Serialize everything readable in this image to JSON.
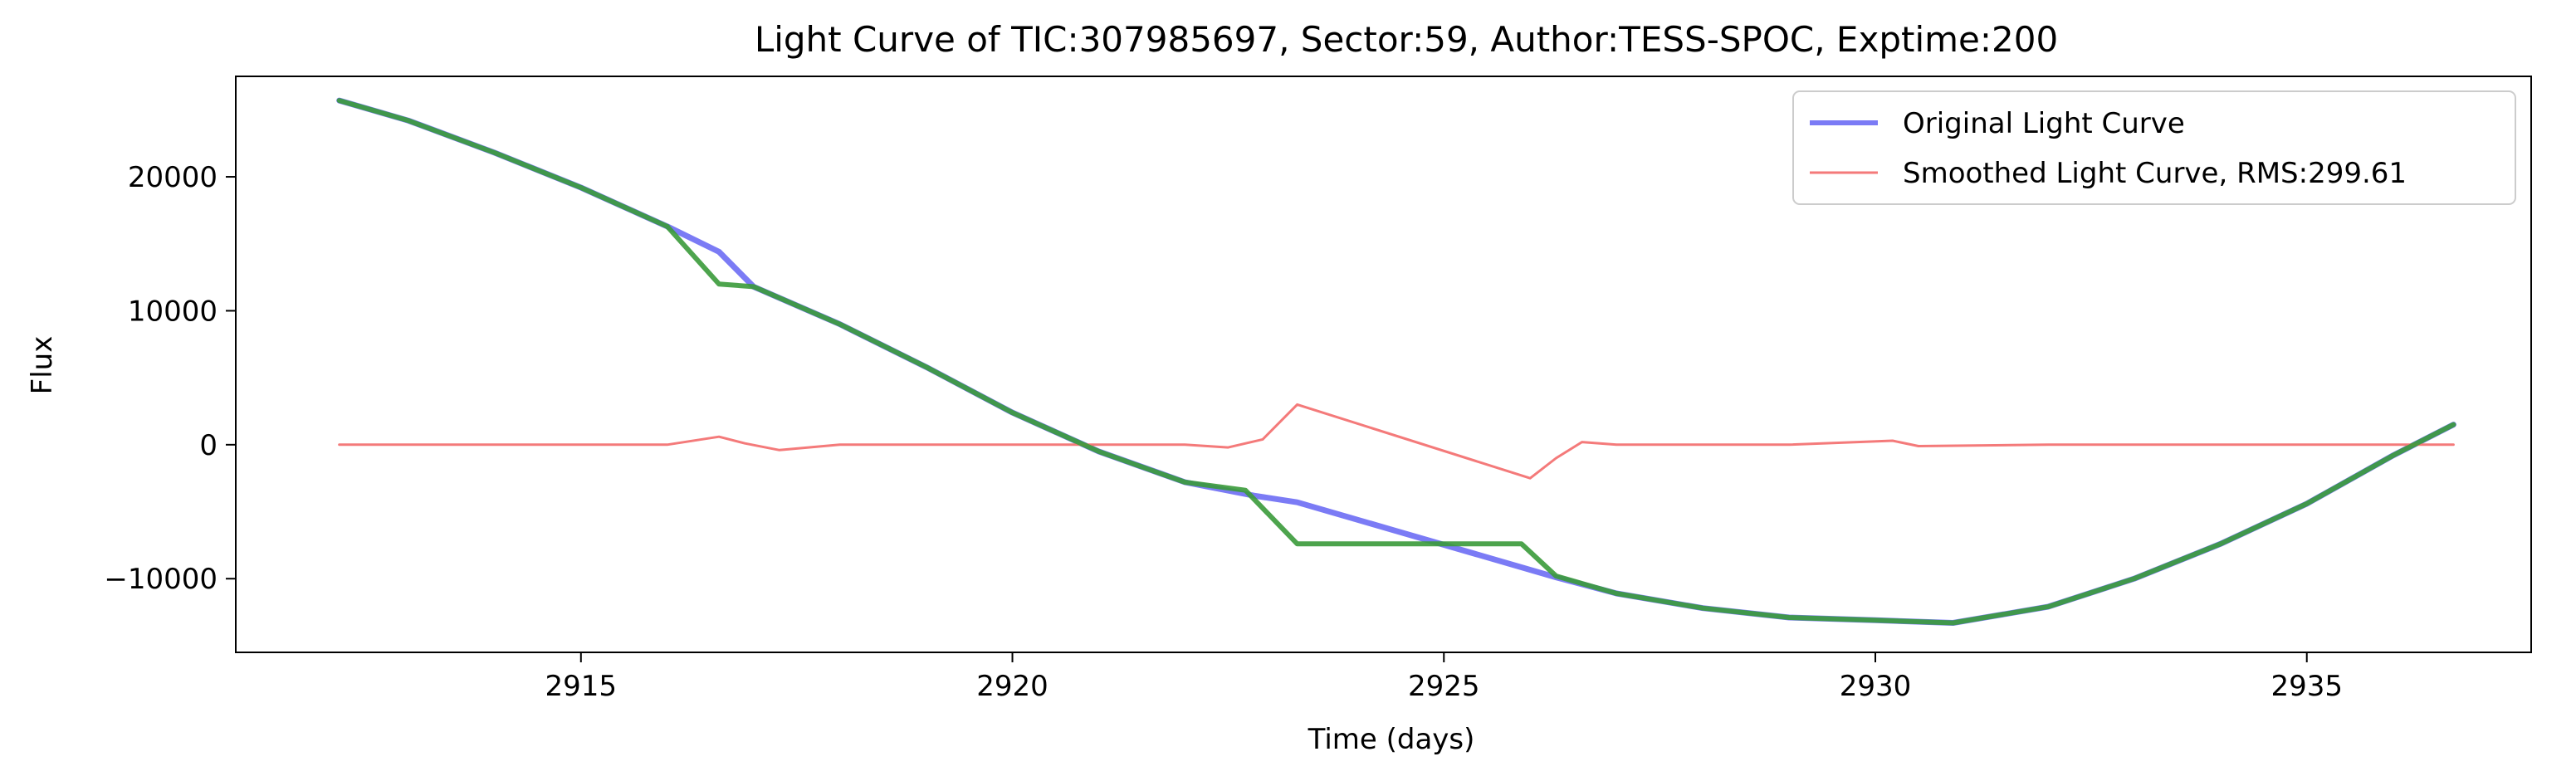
{
  "chart_data": {
    "type": "line",
    "title": "Light Curve of TIC:307985697, Sector:59, Author:TESS-SPOC, Exptime:200",
    "xlabel": "Time (days)",
    "ylabel": "Flux",
    "xlim": [
      2911.0,
      2937.6
    ],
    "ylim": [
      -15500,
      27500
    ],
    "xticks": [
      2915,
      2920,
      2925,
      2930,
      2935
    ],
    "xtick_labels": [
      "2915",
      "2920",
      "2925",
      "2930",
      "2935"
    ],
    "yticks": [
      -10000,
      0,
      10000,
      20000
    ],
    "ytick_labels": [
      "−10000",
      "0",
      "10000",
      "20000"
    ],
    "grid": false,
    "legend_position": "top-right",
    "series": [
      {
        "name": "Original Light Curve",
        "color": "#7b7bf5",
        "x": [
          2912.2,
          2913.0,
          2914.0,
          2915.0,
          2916.0,
          2916.6,
          2917.0,
          2918.0,
          2919.0,
          2920.0,
          2921.0,
          2922.0,
          2922.8,
          2923.3,
          2926.3,
          2927.0,
          2928.0,
          2929.0,
          2930.0,
          2930.9,
          2932.0,
          2933.0,
          2934.0,
          2935.0,
          2936.0,
          2936.7
        ],
        "y": [
          25700,
          24200,
          21800,
          19200,
          16300,
          14400,
          11800,
          9000,
          5800,
          2400,
          -500,
          -2800,
          -3800,
          -4300,
          -9900,
          -11100,
          -12200,
          -12900,
          -13100,
          -13300,
          -12100,
          -10000,
          -7400,
          -4400,
          -800,
          1500
        ]
      },
      {
        "name": "Smoothed Light Curve, RMS:299.61",
        "color": "#f47a7a",
        "x": [
          2912.2,
          2914.0,
          2916.0,
          2916.6,
          2916.9,
          2917.3,
          2918.0,
          2920.0,
          2922.0,
          2922.5,
          2922.9,
          2923.3,
          2926.0,
          2926.3,
          2926.6,
          2927.0,
          2929.0,
          2930.2,
          2930.5,
          2932.0,
          2934.0,
          2936.7
        ],
        "y": [
          0,
          0,
          0,
          600,
          100,
          -400,
          0,
          0,
          0,
          -200,
          400,
          3000,
          -2500,
          -1000,
          200,
          0,
          0,
          300,
          -100,
          0,
          0,
          0
        ]
      },
      {
        "color": "#3a9a3a",
        "x": [
          2912.2,
          2913.0,
          2914.0,
          2915.0,
          2916.0,
          2916.6,
          2917.0,
          2918.0,
          2919.0,
          2920.0,
          2921.0,
          2922.0,
          2922.7,
          2923.3,
          2925.9,
          2926.3,
          2927.0,
          2928.0,
          2929.0,
          2930.0,
          2930.9,
          2932.0,
          2933.0,
          2934.0,
          2935.0,
          2936.0,
          2936.7
        ],
        "y": [
          25700,
          24200,
          21800,
          19200,
          16300,
          12000,
          11800,
          9000,
          5800,
          2400,
          -500,
          -2800,
          -3400,
          -7400,
          -7400,
          -9800,
          -11100,
          -12200,
          -12900,
          -13100,
          -13300,
          -12100,
          -10000,
          -7400,
          -4400,
          -800,
          1500
        ]
      }
    ]
  }
}
